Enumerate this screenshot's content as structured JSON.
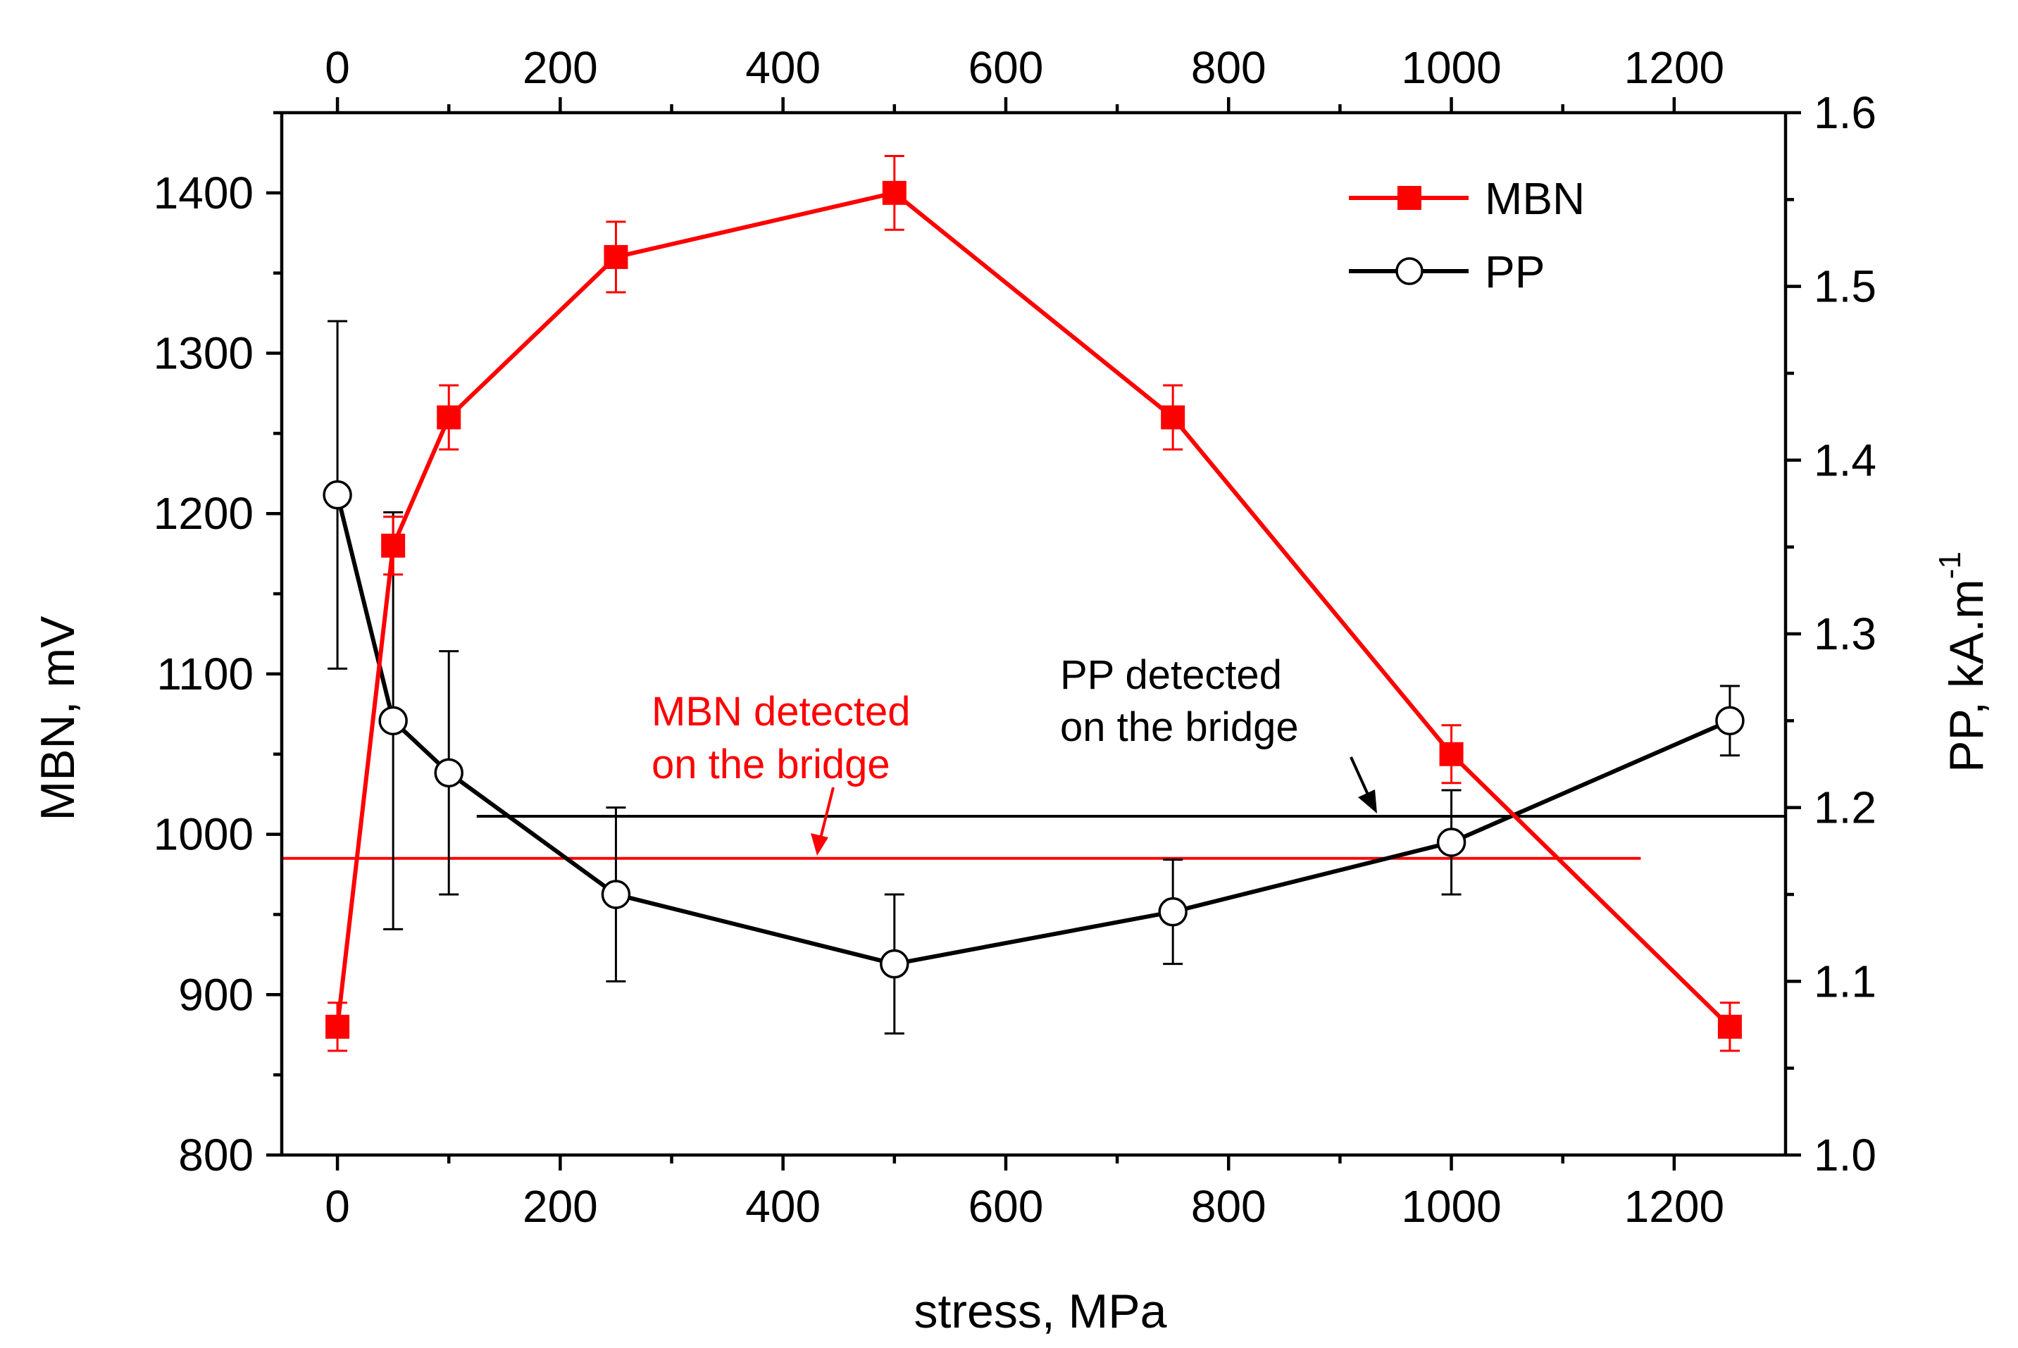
{
  "chart_data": {
    "type": "line",
    "xlabel": "stress, MPa",
    "ylabel_left": "MBN, mV",
    "ylabel_right_main": "PP, kA.m",
    "ylabel_right_sup": "-1",
    "xlim": [
      -50,
      1300
    ],
    "ylim_left": [
      800,
      1450
    ],
    "ylim_right": [
      1.0,
      1.6
    ],
    "x_ticks": [
      0,
      200,
      400,
      600,
      800,
      1000,
      1200
    ],
    "y_left_ticks": [
      800,
      900,
      1000,
      1100,
      1200,
      1300,
      1400
    ],
    "y_right_ticks": [
      1.0,
      1.1,
      1.2,
      1.3,
      1.4,
      1.5,
      1.6
    ],
    "y_right_tick_labels": [
      "1.0",
      "1.1",
      "1.2",
      "1.3",
      "1.4",
      "1.5",
      "1.6"
    ],
    "series": [
      {
        "name": "MBN",
        "axis": "left",
        "color": "#ff0000",
        "marker": "filled-square",
        "x": [
          0,
          50,
          100,
          250,
          500,
          750,
          1000,
          1250
        ],
        "y": [
          880,
          1180,
          1260,
          1360,
          1400,
          1260,
          1050,
          880
        ],
        "err": [
          15,
          18,
          20,
          22,
          23,
          20,
          18,
          15
        ]
      },
      {
        "name": "PP",
        "axis": "right",
        "color": "#000000",
        "marker": "open-circle",
        "x": [
          0,
          50,
          100,
          250,
          500,
          750,
          1000,
          1250
        ],
        "y": [
          1.38,
          1.25,
          1.22,
          1.15,
          1.11,
          1.14,
          1.18,
          1.25
        ],
        "err": [
          0.1,
          0.12,
          0.07,
          0.05,
          0.04,
          0.03,
          0.03,
          0.02
        ]
      }
    ],
    "reference_lines": [
      {
        "label_line1": "MBN detected",
        "label_line2": "on the bridge",
        "axis": "left",
        "y": 985,
        "x_range": [
          -50,
          1170
        ],
        "color": "#ff0000"
      },
      {
        "label_line1": "PP detected",
        "label_line2": "on the bridge",
        "axis": "right",
        "y": 1.195,
        "x_range": [
          125,
          1300
        ],
        "color": "#000000"
      }
    ],
    "legend_position": "top-right",
    "grid": false
  }
}
